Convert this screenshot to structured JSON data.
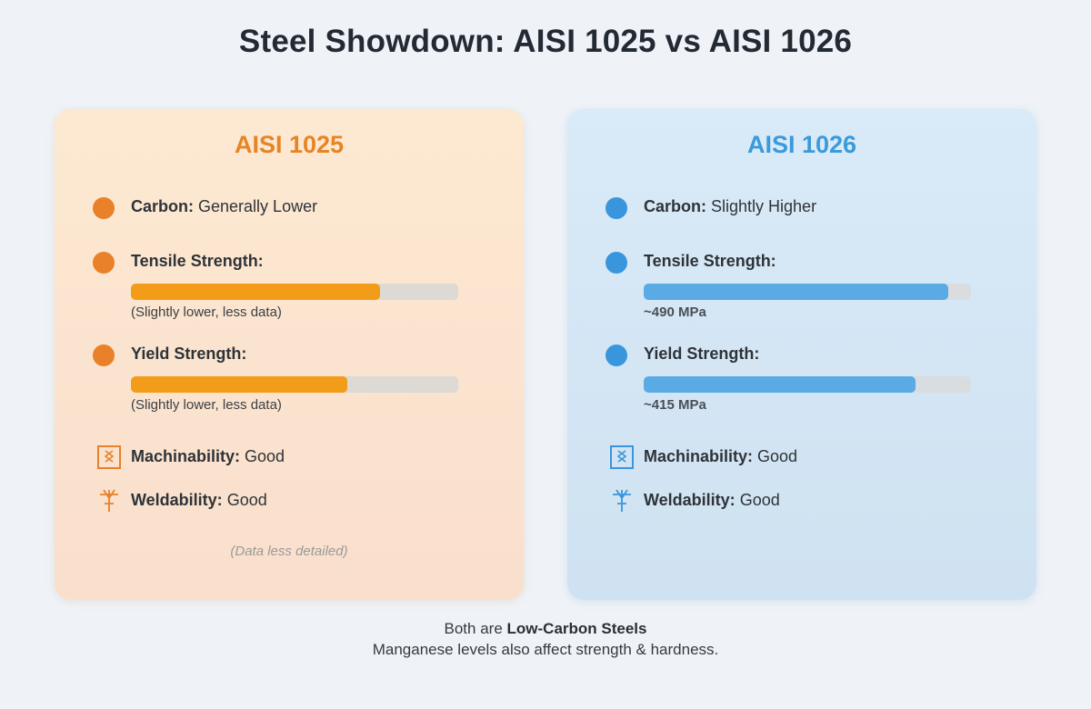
{
  "title": "Steel Showdown: AISI 1025 vs AISI 1026",
  "colors": {
    "orange_accent": "#e8812a",
    "orange_bar": "#f39c19",
    "blue_accent": "#3a96dc",
    "blue_bar": "#5aaae6"
  },
  "left": {
    "heading": "AISI 1025",
    "carbon_label": "Carbon:",
    "carbon_value": "Generally Lower",
    "tensile_label": "Tensile Strength:",
    "tensile_level": 0.76,
    "tensile_note": "(Slightly lower, less data)",
    "yield_label": "Yield Strength:",
    "yield_level": 0.66,
    "yield_note": "(Slightly lower, less data)",
    "machinability_icon": "machinability-icon",
    "machinability_label": "Machinability:",
    "machinability_value": "Good",
    "weldability_icon": "welding-torch-icon",
    "weldability_label": "Weldability:",
    "weldability_value": "Good",
    "note": "(Data less detailed)"
  },
  "right": {
    "heading": "AISI 1026",
    "carbon_label": "Carbon:",
    "carbon_value": "Slightly Higher",
    "tensile_label": "Tensile Strength:",
    "tensile_level": 0.93,
    "tensile_note": "~490 MPa",
    "yield_label": "Yield Strength:",
    "yield_level": 0.83,
    "yield_note": "~415 MPa",
    "machinability_icon": "machinability-icon",
    "machinability_label": "Machinability:",
    "machinability_value": "Good",
    "weldability_icon": "welding-torch-icon",
    "weldability_label": "Weldability:",
    "weldability_value": "Good"
  },
  "footer": {
    "line1_prefix": "Both are",
    "line1_bold": "Low-Carbon Steels",
    "line2": "Manganese levels also affect strength & hardness."
  }
}
